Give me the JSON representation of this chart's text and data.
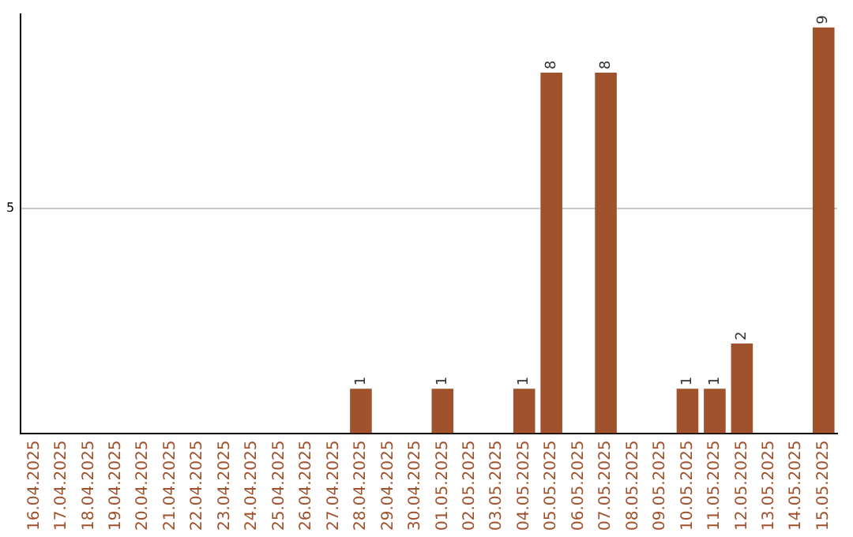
{
  "chart_data": {
    "type": "bar",
    "categories": [
      "16.04.2025",
      "17.04.2025",
      "18.04.2025",
      "19.04.2025",
      "20.04.2025",
      "21.04.2025",
      "22.04.2025",
      "23.04.2025",
      "24.04.2025",
      "25.04.2025",
      "26.04.2025",
      "27.04.2025",
      "28.04.2025",
      "29.04.2025",
      "30.04.2025",
      "01.05.2025",
      "02.05.2025",
      "03.05.2025",
      "04.05.2025",
      "05.05.2025",
      "06.05.2025",
      "07.05.2025",
      "08.05.2025",
      "09.05.2025",
      "10.05.2025",
      "11.05.2025",
      "12.05.2025",
      "13.05.2025",
      "14.05.2025",
      "15.05.2025"
    ],
    "values": [
      null,
      null,
      null,
      null,
      null,
      null,
      null,
      null,
      null,
      null,
      null,
      null,
      1,
      null,
      null,
      1,
      null,
      null,
      1,
      8,
      null,
      8,
      null,
      null,
      1,
      1,
      2,
      null,
      null,
      9
    ],
    "value_labels": [
      null,
      null,
      null,
      null,
      null,
      null,
      null,
      null,
      null,
      null,
      null,
      null,
      "1",
      null,
      null,
      "1",
      null,
      null,
      "1",
      "8",
      null,
      "8",
      null,
      null,
      "1",
      "1",
      "2",
      null,
      null,
      "9"
    ],
    "color": "#a0522d",
    "ylim": [
      0,
      9.3
    ],
    "yticks": [
      {
        "value": 0,
        "label": null
      },
      {
        "value": 5,
        "label": "5"
      }
    ],
    "grid": "y"
  }
}
